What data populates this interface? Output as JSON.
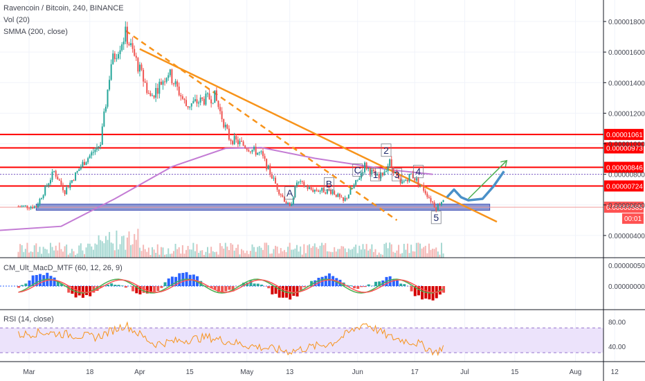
{
  "header": {
    "title": "Ravencoin / Bitcoin, 240, BINANCE",
    "vol_label": "Vol (20)",
    "smma_label": "SMMA (200, close)"
  },
  "macd_pane": {
    "label": "CM_Ult_MacD_MTF (60, 12, 26, 9)"
  },
  "rsi_pane": {
    "label": "RSI (14, close)"
  },
  "colors": {
    "up": "#26a69a",
    "down": "#ef5350",
    "trendline": "#f7931a",
    "resistance": "#ff0000",
    "support_zone": "#7986cb",
    "smma": "#c37bd4",
    "rsi_line": "#f7931a",
    "rsi_band": "#ece3fb",
    "projection": "#4a90c8",
    "arrow": "#4caf50",
    "label_red": "#ff0000"
  },
  "chart_data": {
    "type": "candlestick",
    "symbol": "Ravencoin / Bitcoin",
    "timeframe": "240",
    "exchange": "BINANCE",
    "x_tick_labels": [
      "Mar",
      "18",
      "Apr",
      "15",
      "May",
      "13",
      "Jun",
      "17",
      "Jul",
      "15",
      "Aug",
      "12"
    ],
    "price_ticks": [
      "0.00001800",
      "0.00001600",
      "0.00001400",
      "0.00001200",
      "0.00001000",
      "0.00000800",
      "0.00000600",
      "0.00000400"
    ],
    "ylim": [
      3e-06,
      1.85e-05
    ],
    "price_path": [
      {
        "x": "Mar 3",
        "y": 5.9e-06
      },
      {
        "x": "Mar 8",
        "y": 8.2e-06
      },
      {
        "x": "Mar 11",
        "y": 6.9e-06
      },
      {
        "x": "Mar 16",
        "y": 8.7e-06
      },
      {
        "x": "Mar 21",
        "y": 1e-05
      },
      {
        "x": "Mar 24",
        "y": 1.53e-05
      },
      {
        "x": "Mar 28",
        "y": 1.72e-05
      },
      {
        "x": "Apr 4",
        "y": 1.3e-05
      },
      {
        "x": "Apr 9",
        "y": 1.47e-05
      },
      {
        "x": "Apr 14",
        "y": 1.25e-05
      },
      {
        "x": "Apr 22",
        "y": 1.31e-05
      },
      {
        "x": "Apr 26",
        "y": 1.04e-05
      },
      {
        "x": "May 5",
        "y": 9.3e-06
      },
      {
        "x": "May 10",
        "y": 6.9e-06
      },
      {
        "x": "May 13",
        "y": 5.8e-06
      },
      {
        "x": "May 15",
        "y": 7.5e-06
      },
      {
        "x": "May 19",
        "y": 7e-06
      },
      {
        "x": "May 25",
        "y": 6.9e-06
      },
      {
        "x": "May 28",
        "y": 6.2e-06
      },
      {
        "x": "Jun 1",
        "y": 7.6e-06
      },
      {
        "x": "Jun 3",
        "y": 8.6e-06
      },
      {
        "x": "Jun 7",
        "y": 7.7e-06
      },
      {
        "x": "Jun 10",
        "y": 8.8e-06
      },
      {
        "x": "Jun 13",
        "y": 7.3e-06
      },
      {
        "x": "Jun 16",
        "y": 8e-06
      },
      {
        "x": "Jun 19",
        "y": 7.2e-06
      },
      {
        "x": "Jun 23",
        "y": 5.8e-06
      },
      {
        "x": "Jun 25",
        "y": 6.4e-06
      }
    ],
    "projection_path": [
      {
        "x": "Jun 26",
        "y": 6.5e-06
      },
      {
        "x": "Jun 28",
        "y": 7e-06
      },
      {
        "x": "Jun 30",
        "y": 6.5e-06
      },
      {
        "x": "Jul 2",
        "y": 6.3e-06
      },
      {
        "x": "Jul 6",
        "y": 6.4e-06
      },
      {
        "x": "Jul 9",
        "y": 7.2e-06
      },
      {
        "x": "Jul 12",
        "y": 8.2e-06
      }
    ],
    "smma_path": [
      {
        "x": "Feb 12",
        "y": 4.2e-06
      },
      {
        "x": "Mar 10",
        "y": 4.6e-06
      },
      {
        "x": "Mar 25",
        "y": 6.4e-06
      },
      {
        "x": "Apr 10",
        "y": 8.5e-06
      },
      {
        "x": "Apr 25",
        "y": 9.7e-06
      },
      {
        "x": "May 5",
        "y": 9.75e-06
      },
      {
        "x": "May 20",
        "y": 9.05e-06
      },
      {
        "x": "Jun 10",
        "y": 8.3e-06
      },
      {
        "x": "Jun 22",
        "y": 8e-06
      }
    ],
    "horizontal_levels": [
      {
        "label": "0.00001061",
        "value": 1.061e-05
      },
      {
        "label": "0.00000973",
        "value": 9.73e-06
      },
      {
        "label": "0.00000846",
        "value": 8.46e-06
      },
      {
        "label": "0.00000724",
        "value": 7.24e-06
      }
    ],
    "current_price": {
      "label": "0.00000585",
      "value": 5.85e-06,
      "countdown": "00:01"
    },
    "dotted_level": 8e-06,
    "support_zone": {
      "x_start": "Mar 3",
      "x_end": "Jul 8",
      "y_low": 5.65e-06,
      "y_high": 6.05e-06
    },
    "trendlines": [
      {
        "style": "solid",
        "from": {
          "x": "Apr 1",
          "y": 1.62e-05
        },
        "to": {
          "x": "Jul 10",
          "y": 4.9e-06
        }
      },
      {
        "style": "dashed",
        "from": {
          "x": "Mar 28",
          "y": 1.74e-05
        },
        "to": {
          "x": "Jun 12",
          "y": 5e-06
        }
      }
    ],
    "annotations": [
      {
        "text": "A",
        "x": "May 13",
        "y": 6.6e-06
      },
      {
        "text": "B",
        "x": "May 24",
        "y": 7.2e-06
      },
      {
        "text": "C",
        "x": "Jun 1",
        "y": 8.1e-06
      },
      {
        "text": "1",
        "x": "Jun 6",
        "y": 7.8e-06
      },
      {
        "text": "2",
        "x": "Jun 9",
        "y": 9.4e-06
      },
      {
        "text": "3",
        "x": "Jun 12",
        "y": 7.8e-06
      },
      {
        "text": "4",
        "x": "Jun 18",
        "y": 8e-06
      },
      {
        "text": "5",
        "x": "Jun 23",
        "y": 5e-06
      }
    ],
    "macd_ticks": [
      "0.00000050",
      "0.00000000"
    ],
    "rsi_ticks": [
      "80.00",
      "40.00"
    ],
    "rsi_band": [
      30,
      70
    ],
    "rsi_path": [
      {
        "x": "Feb 12",
        "y": 50
      },
      {
        "x": "Mar 5",
        "y": 63
      },
      {
        "x": "Mar 20",
        "y": 55
      },
      {
        "x": "Mar 28",
        "y": 75
      },
      {
        "x": "Apr 5",
        "y": 44
      },
      {
        "x": "Apr 20",
        "y": 55
      },
      {
        "x": "May 1",
        "y": 42
      },
      {
        "x": "May 13",
        "y": 32
      },
      {
        "x": "May 25",
        "y": 46
      },
      {
        "x": "Jun 3",
        "y": 78
      },
      {
        "x": "Jun 10",
        "y": 55
      },
      {
        "x": "Jun 18",
        "y": 45
      },
      {
        "x": "Jun 23",
        "y": 30
      },
      {
        "x": "Jun 26",
        "y": 45
      }
    ]
  }
}
